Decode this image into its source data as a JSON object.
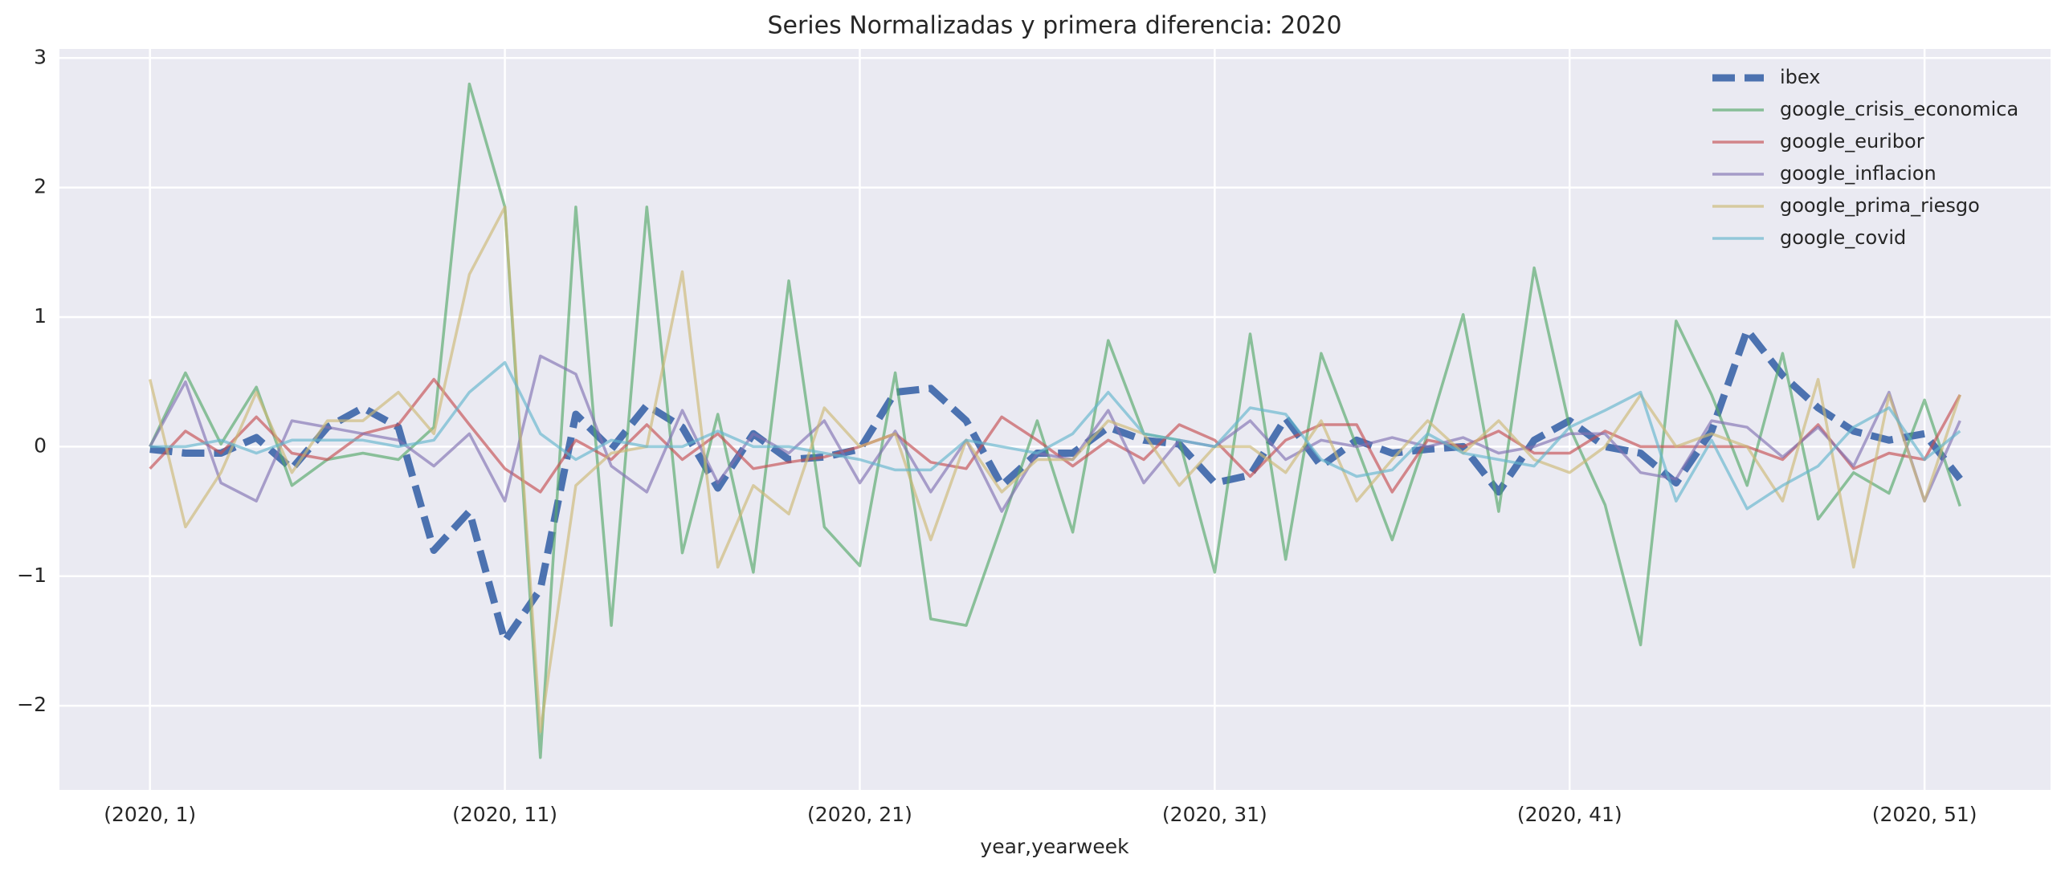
{
  "chart_data": {
    "type": "line",
    "title": "Series Normalizadas y primera diferencia: 2020",
    "xlabel": "year,yearweek",
    "x": [
      1,
      2,
      3,
      4,
      5,
      6,
      7,
      8,
      9,
      10,
      11,
      12,
      13,
      14,
      15,
      16,
      17,
      18,
      19,
      20,
      21,
      22,
      23,
      24,
      25,
      26,
      27,
      28,
      29,
      30,
      31,
      32,
      33,
      34,
      35,
      36,
      37,
      38,
      39,
      40,
      41,
      42,
      43,
      44,
      45,
      46,
      47,
      48,
      49,
      50,
      51,
      52
    ],
    "xlim": [
      -1.55,
      54.55
    ],
    "xticks": [
      {
        "value": 1,
        "label": "(2020, 1)"
      },
      {
        "value": 11,
        "label": "(2020, 11)"
      },
      {
        "value": 21,
        "label": "(2020, 21)"
      },
      {
        "value": 31,
        "label": "(2020, 31)"
      },
      {
        "value": 41,
        "label": "(2020, 41)"
      },
      {
        "value": 51,
        "label": "(2020, 51)"
      }
    ],
    "ylim": [
      -2.65,
      3.07
    ],
    "yticks": [
      {
        "value": -2,
        "label": "−2"
      },
      {
        "value": -1,
        "label": "−1"
      },
      0,
      1,
      2,
      3
    ],
    "grid": true,
    "legend": "upper right",
    "series": [
      {
        "name": "ibex",
        "color": "#4c72b0",
        "linestyle": "dashed",
        "values": [
          -0.02,
          -0.05,
          -0.05,
          0.07,
          -0.17,
          0.15,
          0.3,
          0.15,
          -0.8,
          -0.5,
          -1.5,
          -1.1,
          0.25,
          -0.02,
          0.32,
          0.15,
          -0.32,
          0.1,
          -0.1,
          -0.08,
          -0.02,
          0.42,
          0.45,
          0.2,
          -0.3,
          -0.05,
          -0.05,
          0.15,
          0.05,
          0.02,
          -0.28,
          -0.22,
          0.22,
          -0.15,
          0.05,
          -0.05,
          -0.02,
          0.0,
          -0.35,
          0.05,
          0.2,
          0.0,
          -0.05,
          -0.28,
          0.12,
          0.9,
          0.55,
          0.3,
          0.12,
          0.05,
          0.1,
          -0.25
        ]
      },
      {
        "name": "google_crisis_economica",
        "color": "#55a868",
        "linestyle": "solid",
        "values": [
          0.0,
          0.57,
          0.02,
          0.46,
          -0.3,
          -0.1,
          -0.05,
          -0.1,
          0.15,
          2.8,
          1.85,
          -2.4,
          1.85,
          -1.38,
          1.85,
          -0.82,
          0.25,
          -0.97,
          1.28,
          -0.62,
          -0.92,
          0.57,
          -1.33,
          -1.38,
          -0.6,
          0.2,
          -0.66,
          0.82,
          0.1,
          0.05,
          -0.97,
          0.87,
          -0.87,
          0.72,
          0.0,
          -0.72,
          0.1,
          1.02,
          -0.5,
          1.38,
          0.15,
          -0.45,
          -1.53,
          0.97,
          0.4,
          -0.3,
          0.72,
          -0.56,
          -0.2,
          -0.36,
          0.36,
          -0.46
        ]
      },
      {
        "name": "google_euribor",
        "color": "#c44e52",
        "linestyle": "solid",
        "values": [
          -0.17,
          0.12,
          -0.05,
          0.23,
          -0.05,
          -0.1,
          0.1,
          0.17,
          0.52,
          0.17,
          -0.17,
          -0.35,
          0.05,
          -0.1,
          0.17,
          -0.1,
          0.1,
          -0.17,
          -0.12,
          -0.08,
          0.0,
          0.1,
          -0.12,
          -0.17,
          0.23,
          0.05,
          -0.15,
          0.05,
          -0.1,
          0.17,
          0.05,
          -0.23,
          0.05,
          0.17,
          0.17,
          -0.35,
          0.05,
          0.0,
          0.12,
          -0.05,
          -0.05,
          0.12,
          0.0,
          0.0,
          0.0,
          0.0,
          -0.1,
          0.17,
          -0.17,
          -0.05,
          -0.1,
          0.4
        ]
      },
      {
        "name": "google_inflacion",
        "color": "#8172b2",
        "linestyle": "solid",
        "values": [
          0.0,
          0.5,
          -0.28,
          -0.42,
          0.2,
          0.15,
          0.1,
          0.05,
          -0.15,
          0.1,
          -0.42,
          0.7,
          0.56,
          -0.15,
          -0.35,
          0.28,
          -0.28,
          0.1,
          -0.05,
          0.2,
          -0.28,
          0.12,
          -0.35,
          0.05,
          -0.5,
          -0.05,
          -0.1,
          0.28,
          -0.28,
          0.05,
          0.0,
          0.2,
          -0.1,
          0.05,
          0.0,
          0.07,
          0.0,
          0.07,
          -0.05,
          0.0,
          0.1,
          0.1,
          -0.2,
          -0.25,
          0.2,
          0.15,
          -0.08,
          0.15,
          -0.15,
          0.42,
          -0.42,
          0.2
        ]
      },
      {
        "name": "google_prima_riesgo",
        "color": "#ccb974",
        "linestyle": "solid",
        "values": [
          0.52,
          -0.62,
          -0.2,
          0.42,
          -0.2,
          0.2,
          0.2,
          0.42,
          0.1,
          1.33,
          1.85,
          -2.2,
          -0.3,
          -0.05,
          0.0,
          1.35,
          -0.93,
          -0.3,
          -0.52,
          0.3,
          0.0,
          0.1,
          -0.72,
          0.05,
          -0.35,
          -0.1,
          -0.1,
          0.2,
          0.1,
          -0.3,
          0.0,
          0.0,
          -0.2,
          0.2,
          -0.42,
          -0.1,
          0.2,
          -0.05,
          0.2,
          -0.1,
          -0.2,
          0.0,
          0.4,
          0.0,
          0.1,
          0.0,
          -0.42,
          0.52,
          -0.93,
          0.4,
          -0.42,
          0.4
        ]
      },
      {
        "name": "google_covid",
        "color": "#64b5cd",
        "linestyle": "solid",
        "values": [
          0.0,
          0.0,
          0.05,
          -0.05,
          0.05,
          0.05,
          0.05,
          0.0,
          0.05,
          0.42,
          0.65,
          0.1,
          -0.1,
          0.05,
          0.0,
          0.0,
          0.12,
          0.0,
          0.0,
          -0.05,
          -0.1,
          -0.18,
          -0.18,
          0.05,
          0.0,
          -0.05,
          0.1,
          0.42,
          0.1,
          0.05,
          0.0,
          0.3,
          0.25,
          -0.1,
          -0.23,
          -0.18,
          0.1,
          -0.05,
          -0.1,
          -0.15,
          0.15,
          0.28,
          0.42,
          -0.42,
          0.05,
          -0.48,
          -0.3,
          -0.15,
          0.15,
          0.3,
          -0.1,
          0.12
        ]
      }
    ]
  }
}
